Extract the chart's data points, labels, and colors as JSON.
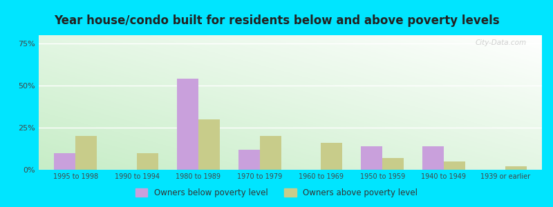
{
  "title": "Year house/condo built for residents below and above poverty levels",
  "categories": [
    "1995 to 1998",
    "1990 to 1994",
    "1980 to 1989",
    "1970 to 1979",
    "1960 to 1969",
    "1950 to 1959",
    "1940 to 1949",
    "1939 or earlier"
  ],
  "below_poverty": [
    10.0,
    0.0,
    54.0,
    12.0,
    0.0,
    14.0,
    14.0,
    0.0
  ],
  "above_poverty": [
    20.0,
    10.0,
    30.0,
    20.0,
    16.0,
    7.0,
    5.0,
    2.0
  ],
  "below_color": "#c9a0dc",
  "above_color": "#c8cc8a",
  "yticks": [
    0,
    25,
    50,
    75
  ],
  "ylim": [
    0,
    80
  ],
  "outer_bg": "#00e5ff",
  "title_fontsize": 12,
  "bar_width": 0.35,
  "watermark": "City-Data.com"
}
